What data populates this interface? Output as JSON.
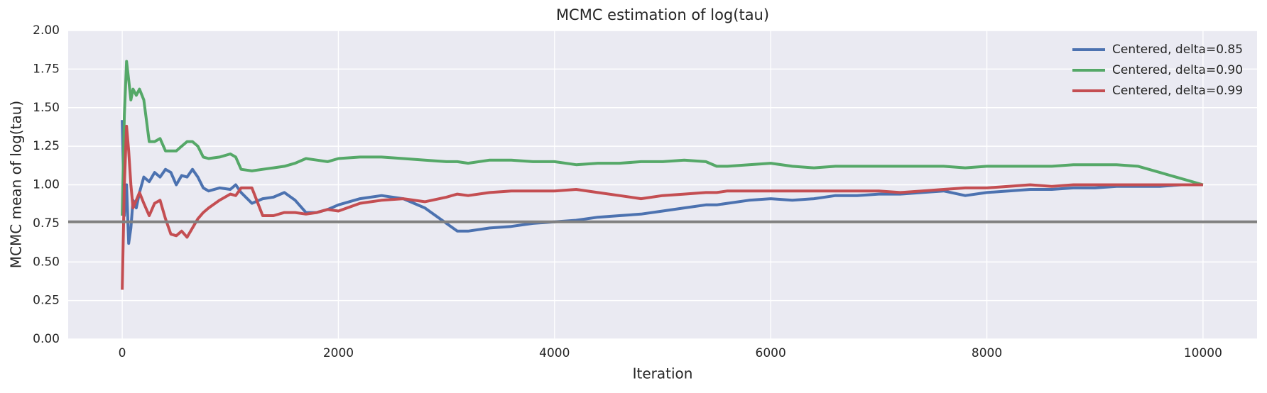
{
  "chart_data": {
    "type": "line",
    "title": "MCMC estimation of log(tau)",
    "x_label": "Iteration",
    "y_label": "MCMC mean of log(tau)",
    "xlim": [
      -500,
      10500
    ],
    "ylim": [
      0,
      2
    ],
    "xticks": [
      0,
      2000,
      4000,
      6000,
      8000,
      10000
    ],
    "yticks": [
      {
        "value": 0,
        "label": "0.00"
      },
      0.25,
      {
        "value": 0.5,
        "label": "0.50"
      },
      0.75,
      {
        "value": 1,
        "label": "1.00"
      },
      1.25,
      {
        "value": 1.5,
        "label": "1.50"
      },
      1.75,
      {
        "value": 2,
        "label": "2.00"
      }
    ],
    "grid": true,
    "background": "#eaeaf2",
    "legend_position": "upper-right",
    "hline": {
      "value": 0.76,
      "color": "#808080"
    },
    "x": [
      0,
      20,
      40,
      60,
      80,
      100,
      130,
      160,
      200,
      250,
      300,
      350,
      400,
      450,
      500,
      550,
      600,
      650,
      700,
      750,
      800,
      900,
      1000,
      1050,
      1100,
      1200,
      1300,
      1400,
      1500,
      1600,
      1700,
      1800,
      1900,
      2000,
      2200,
      2400,
      2600,
      2800,
      3000,
      3100,
      3200,
      3400,
      3600,
      3800,
      4000,
      4200,
      4400,
      4600,
      4800,
      5000,
      5200,
      5400,
      5500,
      5600,
      5800,
      6000,
      6200,
      6400,
      6600,
      6800,
      7000,
      7200,
      7400,
      7600,
      7800,
      8000,
      8200,
      8400,
      8600,
      8800,
      9000,
      9200,
      9400,
      9600,
      9800,
      10000
    ],
    "series": [
      {
        "name": "Centered, delta=0.85",
        "color": "#4c72b0",
        "values": [
          1.42,
          0.8,
          1.0,
          0.62,
          0.72,
          0.9,
          0.85,
          0.95,
          1.05,
          1.02,
          1.08,
          1.05,
          1.1,
          1.08,
          1.0,
          1.06,
          1.05,
          1.1,
          1.05,
          0.98,
          0.96,
          0.98,
          0.97,
          1.0,
          0.95,
          0.88,
          0.91,
          0.92,
          0.95,
          0.9,
          0.82,
          0.82,
          0.84,
          0.87,
          0.91,
          0.93,
          0.91,
          0.85,
          0.75,
          0.7,
          0.7,
          0.72,
          0.73,
          0.75,
          0.76,
          0.77,
          0.79,
          0.8,
          0.81,
          0.83,
          0.85,
          0.87,
          0.87,
          0.88,
          0.9,
          0.91,
          0.9,
          0.91,
          0.93,
          0.93,
          0.94,
          0.94,
          0.95,
          0.96,
          0.93,
          0.95,
          0.96,
          0.97,
          0.97,
          0.98,
          0.98,
          0.99,
          0.99,
          0.99,
          1.0,
          1.0
        ]
      },
      {
        "name": "Centered, delta=0.90",
        "color": "#55a868",
        "values": [
          0.8,
          1.45,
          1.8,
          1.68,
          1.55,
          1.62,
          1.58,
          1.62,
          1.55,
          1.28,
          1.28,
          1.3,
          1.22,
          1.22,
          1.22,
          1.25,
          1.28,
          1.28,
          1.25,
          1.18,
          1.17,
          1.18,
          1.2,
          1.18,
          1.1,
          1.09,
          1.1,
          1.11,
          1.12,
          1.14,
          1.17,
          1.16,
          1.15,
          1.17,
          1.18,
          1.18,
          1.17,
          1.16,
          1.15,
          1.15,
          1.14,
          1.16,
          1.16,
          1.15,
          1.15,
          1.13,
          1.14,
          1.14,
          1.15,
          1.15,
          1.16,
          1.15,
          1.12,
          1.12,
          1.13,
          1.14,
          1.12,
          1.11,
          1.12,
          1.12,
          1.12,
          1.12,
          1.12,
          1.12,
          1.11,
          1.12,
          1.12,
          1.12,
          1.12,
          1.13,
          1.13,
          1.13,
          1.12,
          1.08,
          1.04,
          1.0
        ]
      },
      {
        "name": "Centered, delta=0.99",
        "color": "#c44e52",
        "values": [
          0.32,
          1.0,
          1.38,
          1.22,
          1.0,
          0.85,
          0.9,
          0.95,
          0.88,
          0.8,
          0.88,
          0.9,
          0.78,
          0.68,
          0.67,
          0.7,
          0.66,
          0.72,
          0.78,
          0.82,
          0.85,
          0.9,
          0.94,
          0.93,
          0.98,
          0.98,
          0.8,
          0.8,
          0.82,
          0.82,
          0.81,
          0.82,
          0.84,
          0.83,
          0.88,
          0.9,
          0.91,
          0.89,
          0.92,
          0.94,
          0.93,
          0.95,
          0.96,
          0.96,
          0.96,
          0.97,
          0.95,
          0.93,
          0.91,
          0.93,
          0.94,
          0.95,
          0.95,
          0.96,
          0.96,
          0.96,
          0.96,
          0.96,
          0.96,
          0.96,
          0.96,
          0.95,
          0.96,
          0.97,
          0.98,
          0.98,
          0.99,
          1.0,
          0.99,
          1.0,
          1.0,
          1.0,
          1.0,
          1.0,
          1.0,
          1.0
        ]
      }
    ]
  }
}
